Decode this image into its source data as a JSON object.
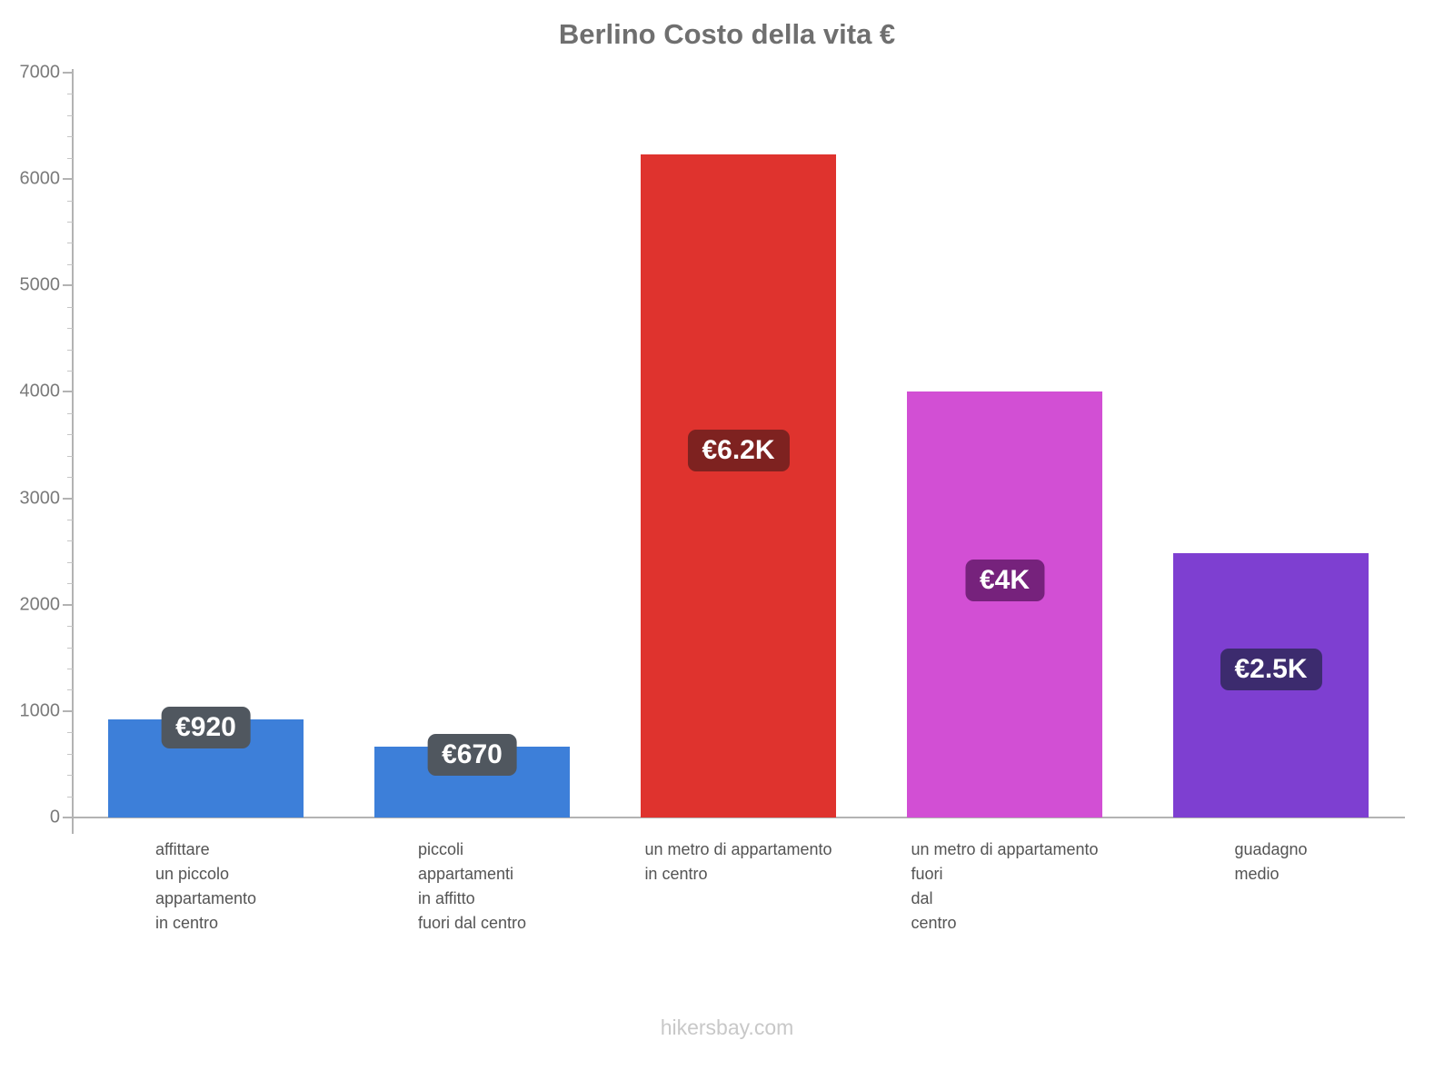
{
  "chart_data": {
    "type": "bar",
    "title": "Berlino Costo della vita €",
    "categories": [
      [
        "affittare",
        "un piccolo",
        "appartamento",
        "in centro"
      ],
      [
        "piccoli",
        "appartamenti",
        "in affitto",
        "fuori dal centro"
      ],
      [
        "un metro di appartamento",
        "in centro"
      ],
      [
        "un metro di appartamento",
        "fuori",
        "dal",
        "centro"
      ],
      [
        "guadagno",
        "medio"
      ]
    ],
    "values": [
      920,
      670,
      6230,
      4000,
      2480
    ],
    "value_labels": [
      "€920",
      "€670",
      "€6.2K",
      "€4K",
      "€2.5K"
    ],
    "bar_colors": [
      "#3d7fd9",
      "#3d7fd9",
      "#df332e",
      "#d24fd4",
      "#7e3fd1"
    ],
    "badge_colors": [
      "#50575f",
      "#50575f",
      "#7e2220",
      "#76227c",
      "#3c2b6e"
    ],
    "ylim": [
      0,
      7000
    ],
    "yticks": [
      0,
      1000,
      2000,
      3000,
      4000,
      5000,
      6000,
      7000
    ],
    "minor_tick_step": 200,
    "xlabel": "",
    "ylabel": "",
    "legend_position": "none",
    "grid": false
  },
  "footer": {
    "watermark": "hikersbay.com"
  }
}
